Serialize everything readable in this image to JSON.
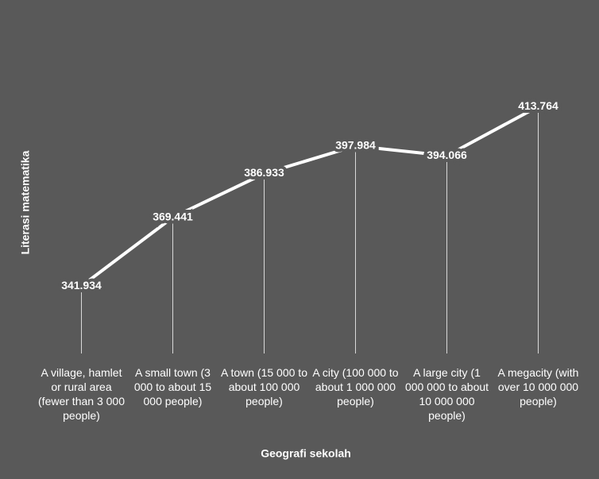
{
  "chart_data": {
    "type": "line",
    "x_label": "Geografi sekolah",
    "y_label": "Literasi matematika",
    "categories": [
      "A village, hamlet or rural area (fewer than 3 000 people)",
      "A small town (3 000 to about 15 000 people)",
      "A town (15 000 to about 100 000 people)",
      "A city (100 000 to about 1 000 000 people)",
      "A large city (1 000 000 to about 10 000 000 people)",
      "A megacity (with over 10 000 000 people)"
    ],
    "values": [
      341.934,
      369.441,
      386.933,
      397.984,
      394.066,
      413.764
    ],
    "color": "#ffffff",
    "ylim": [
      315,
      450
    ]
  }
}
